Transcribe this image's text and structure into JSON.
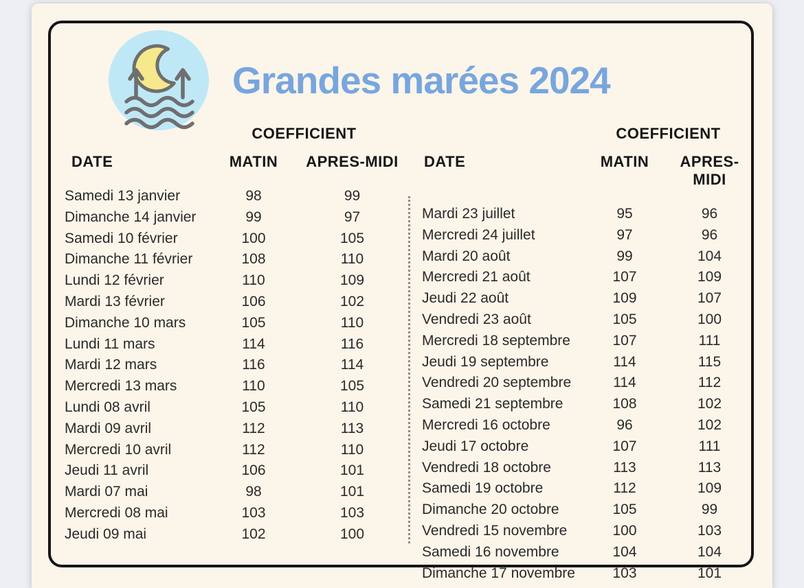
{
  "title": "Grandes marées 2024",
  "labels": {
    "coefficient": "COEFFICIENT",
    "date": "DATE",
    "matin": "MATIN",
    "apres_midi": "APRES-MIDI"
  },
  "colors": {
    "title_blue": "#77a6de",
    "background_cream": "#fcf5ea",
    "outer_gray": "#edeff4",
    "border_black": "#161616",
    "icon_circle_blue": "#bfe8f7",
    "icon_stroke_gray": "#6f6f6f",
    "moon_yellow": "#f6e88c",
    "text_dark": "#2a2a28"
  },
  "icon": {
    "name": "tide-moon-icon"
  },
  "left_rows": [
    {
      "date": "Samedi 13 janvier",
      "matin": "98",
      "apres": "99"
    },
    {
      "date": "Dimanche 14 janvier",
      "matin": "99",
      "apres": "97"
    },
    {
      "date": "Samedi 10 février",
      "matin": "100",
      "apres": "105"
    },
    {
      "date": "Dimanche 11 février",
      "matin": "108",
      "apres": "110"
    },
    {
      "date": "Lundi 12 février",
      "matin": "110",
      "apres": "109"
    },
    {
      "date": "Mardi 13 février",
      "matin": "106",
      "apres": "102"
    },
    {
      "date": "Dimanche 10 mars",
      "matin": "105",
      "apres": "110"
    },
    {
      "date": "Lundi 11 mars",
      "matin": "114",
      "apres": "116"
    },
    {
      "date": "Mardi 12 mars",
      "matin": "116",
      "apres": "114"
    },
    {
      "date": "Mercredi 13 mars",
      "matin": "110",
      "apres": "105"
    },
    {
      "date": "Lundi 08 avril",
      "matin": "105",
      "apres": "110"
    },
    {
      "date": "Mardi 09 avril",
      "matin": "112",
      "apres": "113"
    },
    {
      "date": "Mercredi 10 avril",
      "matin": "112",
      "apres": "110"
    },
    {
      "date": "Jeudi 11 avril",
      "matin": "106",
      "apres": "101"
    },
    {
      "date": "Mardi 07 mai",
      "matin": "98",
      "apres": "101"
    },
    {
      "date": "Mercredi 08 mai",
      "matin": "103",
      "apres": "103"
    },
    {
      "date": "Jeudi 09 mai",
      "matin": "102",
      "apres": "100"
    }
  ],
  "right_rows": [
    {
      "date": "Mardi 23 juillet",
      "matin": "95",
      "apres": "96"
    },
    {
      "date": "Mercredi 24 juillet",
      "matin": "97",
      "apres": "96"
    },
    {
      "date": "Mardi 20 août",
      "matin": "99",
      "apres": "104"
    },
    {
      "date": "Mercredi 21 août",
      "matin": "107",
      "apres": "109"
    },
    {
      "date": "Jeudi 22 août",
      "matin": "109",
      "apres": "107"
    },
    {
      "date": "Vendredi 23 août",
      "matin": "105",
      "apres": "100"
    },
    {
      "date": "Mercredi 18 septembre",
      "matin": "107",
      "apres": "111"
    },
    {
      "date": "Jeudi 19 septembre",
      "matin": "114",
      "apres": "115"
    },
    {
      "date": "Vendredi 20 septembre",
      "matin": "114",
      "apres": "112"
    },
    {
      "date": "Samedi 21 septembre",
      "matin": "108",
      "apres": "102"
    },
    {
      "date": "Mercredi 16 octobre",
      "matin": "96",
      "apres": "102"
    },
    {
      "date": "Jeudi 17 octobre",
      "matin": "107",
      "apres": "111"
    },
    {
      "date": "Vendredi 18 octobre",
      "matin": "113",
      "apres": "113"
    },
    {
      "date": "Samedi 19 octobre",
      "matin": "112",
      "apres": "109"
    },
    {
      "date": "Dimanche 20 octobre",
      "matin": "105",
      "apres": "99"
    },
    {
      "date": "Vendredi 15 novembre",
      "matin": "100",
      "apres": "103"
    },
    {
      "date": "Samedi 16 novembre",
      "matin": "104",
      "apres": "104"
    },
    {
      "date": "Dimanche 17 novembre",
      "matin": "103",
      "apres": "101"
    }
  ]
}
